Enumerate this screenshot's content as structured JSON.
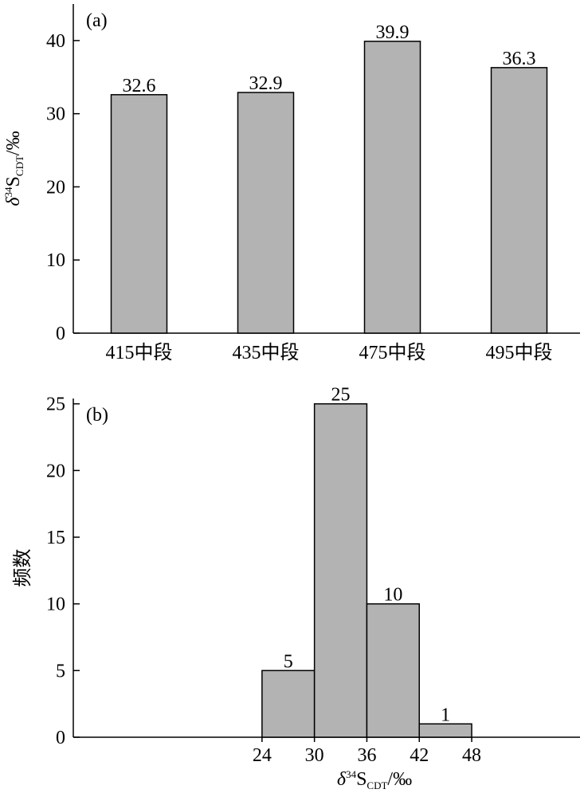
{
  "chart_data": [
    {
      "type": "bar",
      "panel_label": "(a)",
      "y_label": {
        "symbol": "δ",
        "superscript": "34",
        "element": "S",
        "subscript": "CDT",
        "unit": "/‰"
      },
      "categories": [
        "415中段",
        "435中段",
        "475中段",
        "495中段"
      ],
      "values": [
        32.6,
        32.9,
        39.9,
        36.3
      ],
      "color": "#b3b3b3",
      "ylim": [
        0,
        45
      ],
      "yticks": [
        0,
        10,
        20,
        30,
        40
      ]
    },
    {
      "type": "histogram",
      "panel_label": "(b)",
      "y_label": "频数",
      "x_label": {
        "symbol": "δ",
        "superscript": "34",
        "element": "S",
        "subscript": "CDT",
        "unit": "/‰"
      },
      "bins": [
        24,
        30,
        36,
        42,
        48
      ],
      "values": [
        5,
        25,
        10,
        1
      ],
      "color": "#b3b3b3",
      "xlim": [
        2.4,
        60.4
      ],
      "xticks": [
        24,
        30,
        36,
        42,
        48
      ],
      "ylim": [
        0,
        25.4
      ],
      "yticks": [
        0,
        5,
        10,
        15,
        20,
        25
      ]
    }
  ]
}
